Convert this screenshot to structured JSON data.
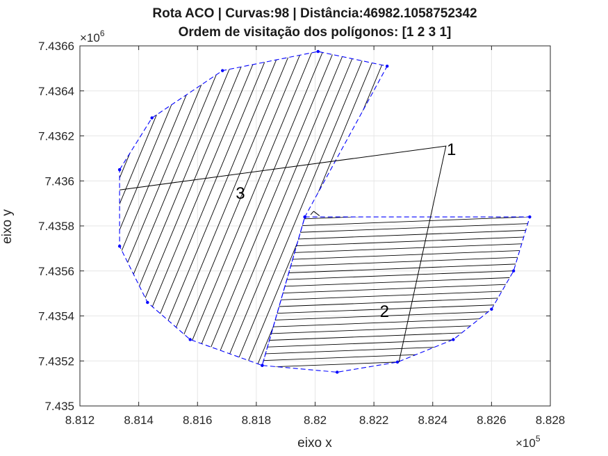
{
  "chart_data": {
    "type": "line",
    "title": "Rota ACO | Curvas:98 | Distância:46982.1058752342",
    "subtitle": "Ordem de visitação dos polígonos: [1 2 3 1]",
    "xlabel": "eixo x",
    "ylabel": "eixo y",
    "x_exponent_label": "×10^5",
    "y_exponent_label": "×10^6",
    "x_exponent_base": "×10",
    "x_exponent_power": "5",
    "y_exponent_base": "×10",
    "y_exponent_power": "6",
    "xlim": [
      881200,
      882800
    ],
    "ylim": [
      7435000,
      7436600
    ],
    "xticks": [
      881200,
      881400,
      881600,
      881800,
      882000,
      882200,
      882400,
      882600,
      882800
    ],
    "xtick_labels": [
      "8.812",
      "8.814",
      "8.816",
      "8.818",
      "8.82",
      "8.822",
      "8.824",
      "8.826",
      "8.828"
    ],
    "yticks": [
      7435000,
      7435200,
      7435400,
      7435600,
      7435800,
      7436000,
      7436200,
      7436400,
      7436600
    ],
    "ytick_labels": [
      "7.435",
      "7.4352",
      "7.4354",
      "7.4356",
      "7.4358",
      "7.436",
      "7.4362",
      "7.4364",
      "7.4366"
    ],
    "grid": true,
    "polygons": [
      {
        "name": "polygon-3",
        "label": "3",
        "label_position": [
          881730,
          7435920
        ],
        "sweep": "diagonal",
        "vertices": [
          [
            881335,
            7436050
          ],
          [
            881445,
            7436280
          ],
          [
            881685,
            7436490
          ],
          [
            882010,
            7436575
          ],
          [
            882245,
            7436510
          ],
          [
            881965,
            7435840
          ],
          [
            881820,
            7435180
          ],
          [
            881575,
            7435295
          ],
          [
            881430,
            7435460
          ],
          [
            881335,
            7435710
          ],
          [
            881335,
            7436050
          ]
        ]
      },
      {
        "name": "polygon-2",
        "label": "2",
        "label_position": [
          882220,
          7435395
        ],
        "sweep": "horizontal",
        "vertices": [
          [
            881965,
            7435840
          ],
          [
            882730,
            7435840
          ],
          [
            882675,
            7435600
          ],
          [
            882600,
            7435430
          ],
          [
            882470,
            7435295
          ],
          [
            882280,
            7435195
          ],
          [
            882075,
            7435150
          ],
          [
            881820,
            7435180
          ],
          [
            881965,
            7435840
          ]
        ]
      }
    ],
    "route": {
      "name": "aco-route",
      "points": [
        [
          882445,
          7436155
        ],
        [
          882285,
          7435195
        ],
        [
          882445,
          7436155
        ],
        [
          881335,
          7435960
        ]
      ],
      "label": "1",
      "label_position": [
        882448,
        7436140
      ]
    },
    "transition_segments": [
      [
        [
          881995,
          7435865
        ],
        [
          882015,
          7435845
        ]
      ],
      [
        [
          881995,
          7435865
        ],
        [
          881985,
          7435850
        ]
      ]
    ],
    "colors": {
      "polygon_edge": "#0000ff",
      "hatch": "#000000",
      "route": "#000000",
      "grid": "#e6e6e6",
      "axis": "#262626"
    }
  }
}
